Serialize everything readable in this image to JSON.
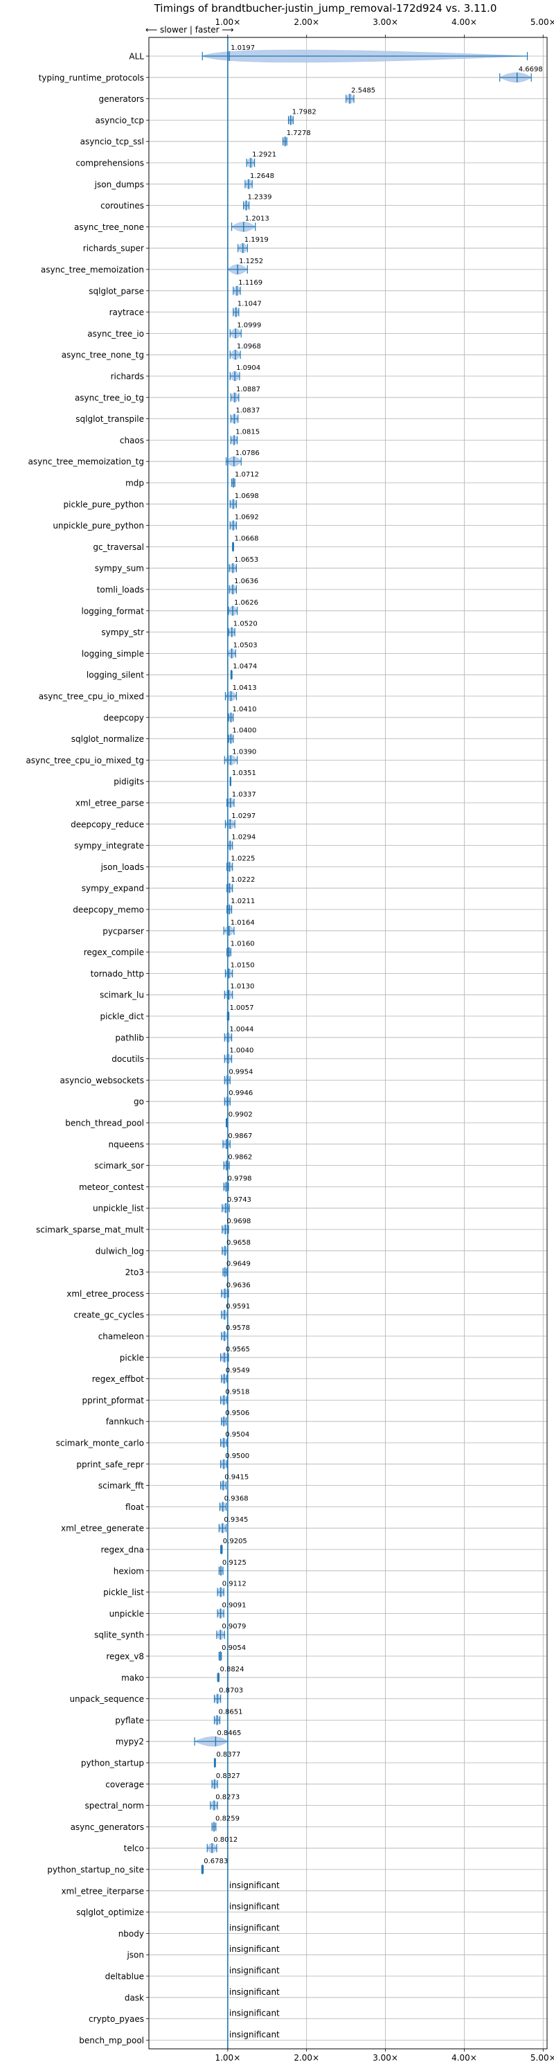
{
  "chart_data": {
    "type": "violin",
    "title": "Timings of brandtbucher-justin_jump_removal-172d924 vs. 3.11.0",
    "direction_label": "⟵ slower | faster ⟶",
    "x_ticks": [
      "1.00×",
      "2.00×",
      "3.00×",
      "4.00×",
      "5.00×"
    ],
    "x_tick_values": [
      1,
      2,
      3,
      4,
      5
    ],
    "xlim": [
      0.0,
      5.05
    ],
    "grid": true,
    "insignificant_label": "insignificant",
    "colors": {
      "violin": "#1f77b4",
      "fill": "#aec7e8",
      "baseline": "#1f77b4",
      "grid": "#b0b0b0"
    },
    "benchmarks": [
      {
        "name": "ALL",
        "value": "1.0197",
        "center": 1.0197,
        "lo": 0.6783,
        "hi": 4.8,
        "overall": true
      },
      {
        "name": "typing_runtime_protocols",
        "value": "4.6698",
        "center": 4.6698,
        "lo": 4.45,
        "hi": 4.85
      },
      {
        "name": "generators",
        "value": "2.5485",
        "center": 2.5485,
        "lo": 2.5,
        "hi": 2.6
      },
      {
        "name": "asyncio_tcp",
        "value": "1.7982",
        "center": 1.7982,
        "lo": 1.77,
        "hi": 1.83
      },
      {
        "name": "asyncio_tcp_ssl",
        "value": "1.7278",
        "center": 1.7278,
        "lo": 1.7,
        "hi": 1.75
      },
      {
        "name": "comprehensions",
        "value": "1.2921",
        "center": 1.2921,
        "lo": 1.24,
        "hi": 1.34
      },
      {
        "name": "json_dumps",
        "value": "1.2648",
        "center": 1.2648,
        "lo": 1.22,
        "hi": 1.31
      },
      {
        "name": "coroutines",
        "value": "1.2339",
        "center": 1.2339,
        "lo": 1.2,
        "hi": 1.27
      },
      {
        "name": "async_tree_none",
        "value": "1.2013",
        "center": 1.2013,
        "lo": 1.05,
        "hi": 1.35
      },
      {
        "name": "richards_super",
        "value": "1.1919",
        "center": 1.1919,
        "lo": 1.13,
        "hi": 1.25
      },
      {
        "name": "async_tree_memoization",
        "value": "1.1252",
        "center": 1.1252,
        "lo": 1.0,
        "hi": 1.25
      },
      {
        "name": "sqlglot_parse",
        "value": "1.1169",
        "center": 1.1169,
        "lo": 1.07,
        "hi": 1.16
      },
      {
        "name": "raytrace",
        "value": "1.1047",
        "center": 1.1047,
        "lo": 1.07,
        "hi": 1.14
      },
      {
        "name": "async_tree_io",
        "value": "1.0999",
        "center": 1.0999,
        "lo": 1.03,
        "hi": 1.17
      },
      {
        "name": "async_tree_none_tg",
        "value": "1.0968",
        "center": 1.0968,
        "lo": 1.03,
        "hi": 1.16
      },
      {
        "name": "richards",
        "value": "1.0904",
        "center": 1.0904,
        "lo": 1.03,
        "hi": 1.15
      },
      {
        "name": "async_tree_io_tg",
        "value": "1.0887",
        "center": 1.0887,
        "lo": 1.04,
        "hi": 1.14
      },
      {
        "name": "sqlglot_transpile",
        "value": "1.0837",
        "center": 1.0837,
        "lo": 1.04,
        "hi": 1.13
      },
      {
        "name": "chaos",
        "value": "1.0815",
        "center": 1.0815,
        "lo": 1.04,
        "hi": 1.12
      },
      {
        "name": "async_tree_memoization_tg",
        "value": "1.0786",
        "center": 1.0786,
        "lo": 0.98,
        "hi": 1.17
      },
      {
        "name": "mdp",
        "value": "1.0712",
        "center": 1.0712,
        "lo": 1.05,
        "hi": 1.09
      },
      {
        "name": "pickle_pure_python",
        "value": "1.0698",
        "center": 1.0698,
        "lo": 1.03,
        "hi": 1.11
      },
      {
        "name": "unpickle_pure_python",
        "value": "1.0692",
        "center": 1.0692,
        "lo": 1.03,
        "hi": 1.11
      },
      {
        "name": "gc_traversal",
        "value": "1.0668",
        "center": 1.0668,
        "lo": 1.06,
        "hi": 1.075
      },
      {
        "name": "sympy_sum",
        "value": "1.0653",
        "center": 1.0653,
        "lo": 1.02,
        "hi": 1.11
      },
      {
        "name": "tomli_loads",
        "value": "1.0636",
        "center": 1.0636,
        "lo": 1.02,
        "hi": 1.11
      },
      {
        "name": "logging_format",
        "value": "1.0626",
        "center": 1.0626,
        "lo": 1.01,
        "hi": 1.12
      },
      {
        "name": "sympy_str",
        "value": "1.0520",
        "center": 1.052,
        "lo": 1.01,
        "hi": 1.09
      },
      {
        "name": "logging_simple",
        "value": "1.0503",
        "center": 1.0503,
        "lo": 1.0,
        "hi": 1.1
      },
      {
        "name": "logging_silent",
        "value": "1.0474",
        "center": 1.0474,
        "lo": 1.04,
        "hi": 1.055
      },
      {
        "name": "async_tree_cpu_io_mixed",
        "value": "1.0413",
        "center": 1.0413,
        "lo": 0.97,
        "hi": 1.11
      },
      {
        "name": "deepcopy",
        "value": "1.0410",
        "center": 1.041,
        "lo": 1.01,
        "hi": 1.07
      },
      {
        "name": "sqlglot_normalize",
        "value": "1.0400",
        "center": 1.04,
        "lo": 1.01,
        "hi": 1.07
      },
      {
        "name": "async_tree_cpu_io_mixed_tg",
        "value": "1.0390",
        "center": 1.039,
        "lo": 0.96,
        "hi": 1.12
      },
      {
        "name": "pidigits",
        "value": "1.0351",
        "center": 1.0351,
        "lo": 1.03,
        "hi": 1.04
      },
      {
        "name": "xml_etree_parse",
        "value": "1.0337",
        "center": 1.0337,
        "lo": 0.99,
        "hi": 1.08
      },
      {
        "name": "deepcopy_reduce",
        "value": "1.0297",
        "center": 1.0297,
        "lo": 0.97,
        "hi": 1.09
      },
      {
        "name": "sympy_integrate",
        "value": "1.0294",
        "center": 1.0294,
        "lo": 1.0,
        "hi": 1.06
      },
      {
        "name": "json_loads",
        "value": "1.0225",
        "center": 1.0225,
        "lo": 0.99,
        "hi": 1.06
      },
      {
        "name": "sympy_expand",
        "value": "1.0222",
        "center": 1.0222,
        "lo": 0.99,
        "hi": 1.06
      },
      {
        "name": "deepcopy_memo",
        "value": "1.0211",
        "center": 1.0211,
        "lo": 0.99,
        "hi": 1.05
      },
      {
        "name": "pycparser",
        "value": "1.0164",
        "center": 1.0164,
        "lo": 0.95,
        "hi": 1.08
      },
      {
        "name": "regex_compile",
        "value": "1.0160",
        "center": 1.016,
        "lo": 0.99,
        "hi": 1.04
      },
      {
        "name": "tornado_http",
        "value": "1.0150",
        "center": 1.015,
        "lo": 0.97,
        "hi": 1.06
      },
      {
        "name": "scimark_lu",
        "value": "1.0130",
        "center": 1.013,
        "lo": 0.96,
        "hi": 1.06
      },
      {
        "name": "pickle_dict",
        "value": "1.0057",
        "center": 1.0057,
        "lo": 0.995,
        "hi": 1.015
      },
      {
        "name": "pathlib",
        "value": "1.0044",
        "center": 1.0044,
        "lo": 0.96,
        "hi": 1.05
      },
      {
        "name": "docutils",
        "value": "1.0040",
        "center": 1.004,
        "lo": 0.96,
        "hi": 1.05
      },
      {
        "name": "asyncio_websockets",
        "value": "0.9954",
        "center": 0.9954,
        "lo": 0.96,
        "hi": 1.03
      },
      {
        "name": "go",
        "value": "0.9946",
        "center": 0.9946,
        "lo": 0.96,
        "hi": 1.03
      },
      {
        "name": "bench_thread_pool",
        "value": "0.9902",
        "center": 0.9902,
        "lo": 0.98,
        "hi": 1.0
      },
      {
        "name": "nqueens",
        "value": "0.9867",
        "center": 0.9867,
        "lo": 0.94,
        "hi": 1.03
      },
      {
        "name": "scimark_sor",
        "value": "0.9862",
        "center": 0.9862,
        "lo": 0.95,
        "hi": 1.02
      },
      {
        "name": "meteor_contest",
        "value": "0.9798",
        "center": 0.9798,
        "lo": 0.95,
        "hi": 1.01
      },
      {
        "name": "unpickle_list",
        "value": "0.9743",
        "center": 0.9743,
        "lo": 0.93,
        "hi": 1.02
      },
      {
        "name": "scimark_sparse_mat_mult",
        "value": "0.9698",
        "center": 0.9698,
        "lo": 0.93,
        "hi": 1.01
      },
      {
        "name": "dulwich_log",
        "value": "0.9658",
        "center": 0.9658,
        "lo": 0.93,
        "hi": 1.0
      },
      {
        "name": "2to3",
        "value": "0.9649",
        "center": 0.9649,
        "lo": 0.94,
        "hi": 0.99
      },
      {
        "name": "xml_etree_process",
        "value": "0.9636",
        "center": 0.9636,
        "lo": 0.92,
        "hi": 1.01
      },
      {
        "name": "create_gc_cycles",
        "value": "0.9591",
        "center": 0.9591,
        "lo": 0.92,
        "hi": 1.0
      },
      {
        "name": "chameleon",
        "value": "0.9578",
        "center": 0.9578,
        "lo": 0.92,
        "hi": 1.0
      },
      {
        "name": "pickle",
        "value": "0.9565",
        "center": 0.9565,
        "lo": 0.91,
        "hi": 1.01
      },
      {
        "name": "regex_effbot",
        "value": "0.9549",
        "center": 0.9549,
        "lo": 0.92,
        "hi": 0.99
      },
      {
        "name": "pprint_pformat",
        "value": "0.9518",
        "center": 0.9518,
        "lo": 0.91,
        "hi": 0.99
      },
      {
        "name": "fannkuch",
        "value": "0.9506",
        "center": 0.9506,
        "lo": 0.92,
        "hi": 0.98
      },
      {
        "name": "scimark_monte_carlo",
        "value": "0.9504",
        "center": 0.9504,
        "lo": 0.91,
        "hi": 0.99
      },
      {
        "name": "pprint_safe_repr",
        "value": "0.9500",
        "center": 0.95,
        "lo": 0.91,
        "hi": 0.99
      },
      {
        "name": "scimark_fft",
        "value": "0.9415",
        "center": 0.9415,
        "lo": 0.91,
        "hi": 0.98
      },
      {
        "name": "float",
        "value": "0.9368",
        "center": 0.9368,
        "lo": 0.9,
        "hi": 0.98
      },
      {
        "name": "xml_etree_generate",
        "value": "0.9345",
        "center": 0.9345,
        "lo": 0.89,
        "hi": 0.98
      },
      {
        "name": "regex_dna",
        "value": "0.9205",
        "center": 0.9205,
        "lo": 0.91,
        "hi": 0.93
      },
      {
        "name": "hexiom",
        "value": "0.9125",
        "center": 0.9125,
        "lo": 0.89,
        "hi": 0.94
      },
      {
        "name": "pickle_list",
        "value": "0.9112",
        "center": 0.9112,
        "lo": 0.87,
        "hi": 0.95
      },
      {
        "name": "unpickle",
        "value": "0.9091",
        "center": 0.9091,
        "lo": 0.87,
        "hi": 0.95
      },
      {
        "name": "sqlite_synth",
        "value": "0.9079",
        "center": 0.9079,
        "lo": 0.86,
        "hi": 0.96
      },
      {
        "name": "regex_v8",
        "value": "0.9054",
        "center": 0.9054,
        "lo": 0.89,
        "hi": 0.92
      },
      {
        "name": "mako",
        "value": "0.8824",
        "center": 0.8824,
        "lo": 0.87,
        "hi": 0.89
      },
      {
        "name": "unpack_sequence",
        "value": "0.8703",
        "center": 0.8703,
        "lo": 0.83,
        "hi": 0.91
      },
      {
        "name": "pyflate",
        "value": "0.8651",
        "center": 0.8651,
        "lo": 0.83,
        "hi": 0.9
      },
      {
        "name": "mypy2",
        "value": "0.8465",
        "center": 0.8465,
        "lo": 0.58,
        "hi": 1.0
      },
      {
        "name": "python_startup",
        "value": "0.8377",
        "center": 0.8377,
        "lo": 0.83,
        "hi": 0.845
      },
      {
        "name": "coverage",
        "value": "0.8327",
        "center": 0.8327,
        "lo": 0.8,
        "hi": 0.87
      },
      {
        "name": "spectral_norm",
        "value": "0.8273",
        "center": 0.8273,
        "lo": 0.78,
        "hi": 0.87
      },
      {
        "name": "async_generators",
        "value": "0.8259",
        "center": 0.8259,
        "lo": 0.8,
        "hi": 0.85
      },
      {
        "name": "telco",
        "value": "0.8012",
        "center": 0.8012,
        "lo": 0.74,
        "hi": 0.86
      },
      {
        "name": "python_startup_no_site",
        "value": "0.6783",
        "center": 0.6783,
        "lo": 0.67,
        "hi": 0.69
      },
      {
        "name": "xml_etree_iterparse",
        "value": "insignificant",
        "insignificant": true
      },
      {
        "name": "sqlglot_optimize",
        "value": "insignificant",
        "insignificant": true
      },
      {
        "name": "nbody",
        "value": "insignificant",
        "insignificant": true
      },
      {
        "name": "json",
        "value": "insignificant",
        "insignificant": true
      },
      {
        "name": "deltablue",
        "value": "insignificant",
        "insignificant": true
      },
      {
        "name": "dask",
        "value": "insignificant",
        "insignificant": true
      },
      {
        "name": "crypto_pyaes",
        "value": "insignificant",
        "insignificant": true
      },
      {
        "name": "bench_mp_pool",
        "value": "insignificant",
        "insignificant": true
      }
    ]
  }
}
